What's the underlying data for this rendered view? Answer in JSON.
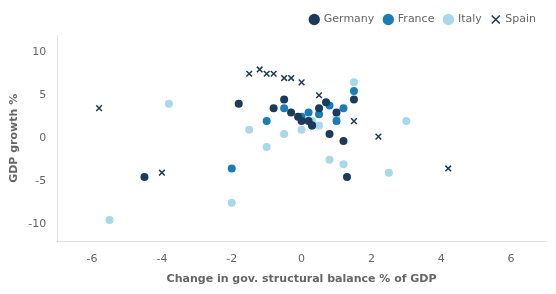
{
  "chart_data": {
    "type": "scatter",
    "xlabel": "Change in gov. structural balance % of GDP",
    "ylabel": "GDP growth %",
    "xlim": [
      -7,
      7
    ],
    "ylim": [
      -12,
      12
    ],
    "xticks": [
      -6,
      -4,
      -2,
      0,
      2,
      4,
      6
    ],
    "yticks": [
      -10,
      -5,
      0,
      5,
      10
    ],
    "grid": false,
    "legend": "upper right",
    "series": [
      {
        "name": "Germany",
        "color": "#1b3a5c",
        "marker": "circle",
        "x": [
          -4.5,
          -1.8,
          -0.8,
          -0.5,
          -0.3,
          -0.1,
          0.0,
          0.2,
          0.3,
          0.5,
          0.7,
          0.8,
          1.0,
          1.2,
          1.3,
          1.5
        ],
        "values": [
          -4.5,
          4.0,
          3.5,
          4.5,
          3.0,
          2.5,
          2.0,
          2.0,
          1.5,
          3.5,
          4.2,
          0.5,
          3.0,
          -0.3,
          -4.5,
          4.5
        ]
      },
      {
        "name": "France",
        "color": "#1a7db5",
        "marker": "circle",
        "x": [
          -2.0,
          -1.0,
          -0.5,
          0.0,
          0.2,
          0.3,
          0.5,
          0.8,
          1.0,
          1.2,
          1.5
        ],
        "values": [
          -3.5,
          2.0,
          3.5,
          2.5,
          3.0,
          1.5,
          2.8,
          3.8,
          2.0,
          3.5,
          5.5
        ]
      },
      {
        "name": "Italy",
        "color": "#a8d8ea",
        "marker": "circle",
        "x": [
          -5.5,
          -3.8,
          -2.0,
          -1.5,
          -1.0,
          -0.5,
          0.0,
          0.3,
          0.5,
          0.8,
          1.0,
          1.2,
          1.5,
          2.5,
          3.0
        ],
        "values": [
          -9.5,
          4.0,
          -7.5,
          1.0,
          -1.0,
          0.5,
          1.0,
          2.0,
          1.5,
          -2.5,
          2.5,
          -3.0,
          6.5,
          -4.0,
          2.0
        ]
      },
      {
        "name": "Spain",
        "color": "#1b3a5c",
        "marker": "x",
        "x": [
          -5.8,
          -4.0,
          -1.5,
          -1.2,
          -1.0,
          -0.8,
          -0.5,
          -0.3,
          0.0,
          0.5,
          1.0,
          1.5,
          2.2,
          4.2
        ],
        "values": [
          3.5,
          -4.0,
          7.5,
          8.0,
          7.5,
          7.5,
          7.0,
          7.0,
          6.5,
          5.0,
          2.0,
          2.0,
          0.2,
          -3.5
        ]
      }
    ]
  }
}
